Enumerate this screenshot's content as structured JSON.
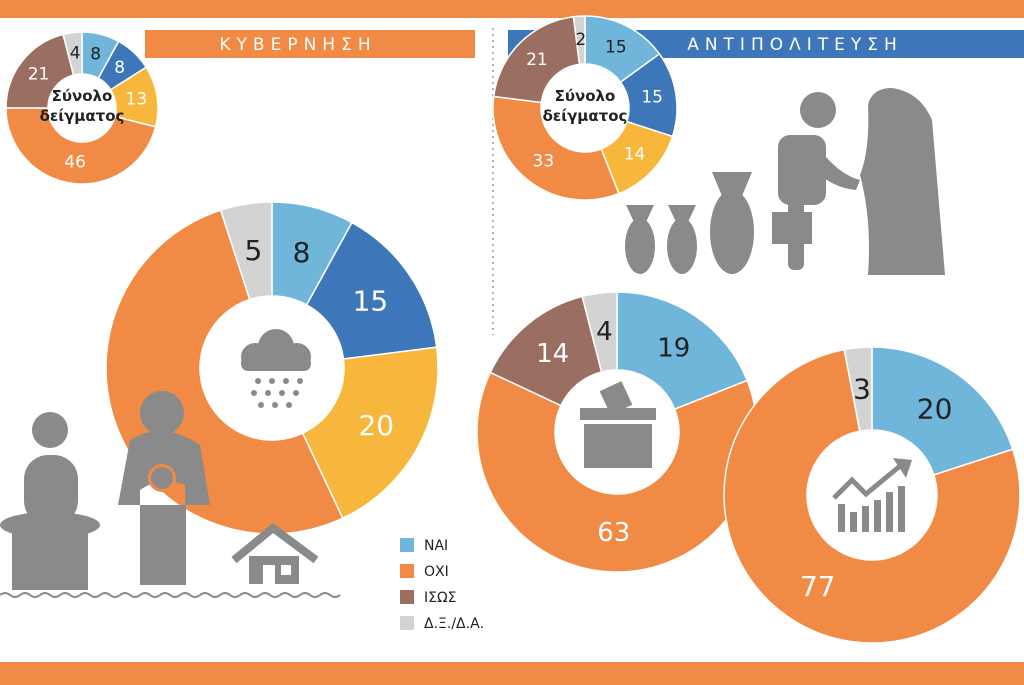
{
  "headers": {
    "government": "ΚΥΒΕΡΝΗΣΗ",
    "opposition": "ΑΝΤΙΠΟΛΙΤΕΥΣΗ"
  },
  "center_label_line1": "Σύνολο",
  "center_label_line2": "δείγματος",
  "legend": [
    {
      "label": "ΝΑΙ",
      "color": "#6fb6da"
    },
    {
      "label": "ΟΧΙ",
      "color": "#f08a44"
    },
    {
      "label": "ΙΣΩΣ",
      "color": "#9b6e62"
    },
    {
      "label": "Δ.Ξ./Δ.Α.",
      "color": "#d3d3d3"
    }
  ],
  "colors": {
    "nai": "#6fb6da",
    "nai_dark": "#3d77b9",
    "yellow": "#f6b73c",
    "oxi": "#f08a44",
    "isos": "#9b6e62",
    "dxda": "#d3d3d3",
    "header_orange": "#f08a44",
    "header_blue": "#3d77b9"
  },
  "chart_data": [
    {
      "type": "pie",
      "title": "ΚΥΒΕΡΝΗΣΗ — Σύνολο δείγματος",
      "segments": [
        {
          "value": 8,
          "category": "ΝΑΙ",
          "color_key": "nai"
        },
        {
          "value": 8,
          "category": "ΝΑΙ (σκούρο)",
          "color_key": "nai_dark"
        },
        {
          "value": 13,
          "category": "κίτρινο",
          "color_key": "yellow"
        },
        {
          "value": 46,
          "category": "ΟΧΙ",
          "color_key": "oxi"
        },
        {
          "value": 21,
          "category": "ΙΣΩΣ",
          "color_key": "isos"
        },
        {
          "value": 4,
          "category": "Δ.Ξ./Δ.Α.",
          "color_key": "dxda"
        }
      ]
    },
    {
      "type": "pie",
      "title": "ΚΥΒΕΡΝΗΣΗ — βροχή/νερό",
      "segments": [
        {
          "value": 8,
          "category": "ΝΑΙ",
          "color_key": "nai"
        },
        {
          "value": 15,
          "category": "ΝΑΙ (σκούρο)",
          "color_key": "nai_dark"
        },
        {
          "value": 20,
          "category": "κίτρινο",
          "color_key": "yellow"
        },
        {
          "value": 52,
          "category": "ΟΧΙ",
          "color_key": "oxi"
        },
        {
          "value": 5,
          "category": "Δ.Ξ./Δ.Α.",
          "color_key": "dxda"
        }
      ]
    },
    {
      "type": "pie",
      "title": "ΑΝΤΙΠΟΛΙΤΕΥΣΗ — Σύνολο δείγματος",
      "segments": [
        {
          "value": 15,
          "category": "ΝΑΙ",
          "color_key": "nai"
        },
        {
          "value": 15,
          "category": "ΝΑΙ (σκούρο)",
          "color_key": "nai_dark"
        },
        {
          "value": 14,
          "category": "κίτρινο",
          "color_key": "yellow"
        },
        {
          "value": 33,
          "category": "ΟΧΙ",
          "color_key": "oxi"
        },
        {
          "value": 21,
          "category": "ΙΣΩΣ",
          "color_key": "isos"
        },
        {
          "value": 2,
          "category": "Δ.Ξ./Δ.Α.",
          "color_key": "dxda"
        }
      ]
    },
    {
      "type": "pie",
      "title": "ΑΝΤΙΠΟΛΙΤΕΥΣΗ — κάλπη",
      "segments": [
        {
          "value": 19,
          "category": "ΝΑΙ",
          "color_key": "nai"
        },
        {
          "value": 63,
          "category": "ΟΧΙ",
          "color_key": "oxi"
        },
        {
          "value": 14,
          "category": "ΙΣΩΣ",
          "color_key": "isos"
        },
        {
          "value": 4,
          "category": "Δ.Ξ./Δ.Α.",
          "color_key": "dxda"
        }
      ]
    },
    {
      "type": "pie",
      "title": "ΑΝΤΙΠΟΛΙΤΕΥΣΗ — οικονομία",
      "segments": [
        {
          "value": 20,
          "category": "ΝΑΙ",
          "color_key": "nai"
        },
        {
          "value": 77,
          "category": "ΟΧΙ",
          "color_key": "oxi"
        },
        {
          "value": 3,
          "category": "Δ.Ξ./Δ.Α.",
          "color_key": "dxda"
        }
      ]
    }
  ]
}
